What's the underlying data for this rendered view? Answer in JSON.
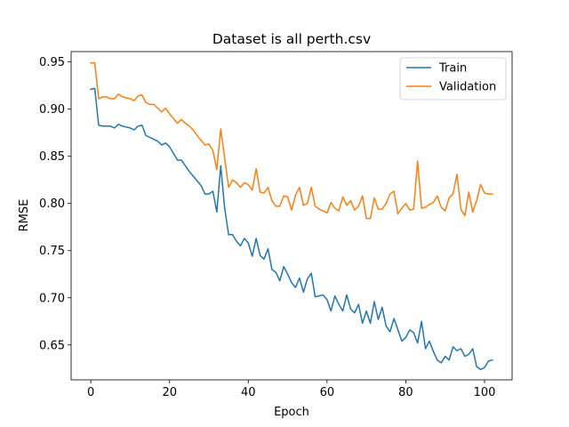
{
  "chart_data": {
    "type": "line",
    "title": "Dataset is all perth.csv",
    "xlabel": "Epoch",
    "ylabel": "RMSE",
    "xlim": [
      -5,
      107
    ],
    "ylim": [
      0.613,
      0.961
    ],
    "xticks": [
      0,
      20,
      40,
      60,
      80,
      100
    ],
    "yticks": [
      0.65,
      0.7,
      0.75,
      0.8,
      0.85,
      0.9,
      0.95
    ],
    "ytick_labels": [
      "0.65",
      "0.70",
      "0.75",
      "0.80",
      "0.85",
      "0.90",
      "0.95"
    ],
    "grid": false,
    "legend_position": "upper right",
    "series": [
      {
        "name": "Train",
        "color": "#1f77b4",
        "x": [
          0,
          1,
          2,
          3,
          4,
          5,
          6,
          7,
          8,
          9,
          10,
          11,
          12,
          13,
          14,
          15,
          16,
          17,
          18,
          19,
          20,
          21,
          22,
          23,
          24,
          25,
          26,
          27,
          28,
          29,
          30,
          31,
          32,
          33,
          34,
          35,
          36,
          37,
          38,
          39,
          40,
          41,
          42,
          43,
          44,
          45,
          46,
          47,
          48,
          49,
          50,
          51,
          52,
          53,
          54,
          55,
          56,
          57,
          58,
          59,
          60,
          61,
          62,
          63,
          64,
          65,
          66,
          67,
          68,
          69,
          70,
          71,
          72,
          73,
          74,
          75,
          76,
          77,
          78,
          79,
          80,
          81,
          82,
          83,
          84,
          85,
          86,
          87,
          88,
          89,
          90,
          91,
          92,
          93,
          94,
          95,
          96,
          97,
          98,
          99,
          100,
          101,
          102
        ],
        "values": [
          0.921,
          0.922,
          0.883,
          0.882,
          0.882,
          0.882,
          0.88,
          0.884,
          0.882,
          0.881,
          0.88,
          0.878,
          0.882,
          0.883,
          0.872,
          0.87,
          0.868,
          0.866,
          0.862,
          0.864,
          0.86,
          0.853,
          0.846,
          0.846,
          0.84,
          0.834,
          0.829,
          0.824,
          0.819,
          0.81,
          0.81,
          0.813,
          0.791,
          0.84,
          0.795,
          0.767,
          0.767,
          0.76,
          0.755,
          0.763,
          0.758,
          0.744,
          0.763,
          0.745,
          0.741,
          0.752,
          0.73,
          0.727,
          0.718,
          0.733,
          0.725,
          0.716,
          0.711,
          0.721,
          0.706,
          0.72,
          0.726,
          0.701,
          0.702,
          0.703,
          0.698,
          0.686,
          0.702,
          0.693,
          0.686,
          0.703,
          0.688,
          0.684,
          0.693,
          0.673,
          0.686,
          0.673,
          0.696,
          0.677,
          0.69,
          0.67,
          0.664,
          0.678,
          0.666,
          0.654,
          0.658,
          0.666,
          0.663,
          0.652,
          0.675,
          0.646,
          0.654,
          0.643,
          0.634,
          0.631,
          0.638,
          0.634,
          0.648,
          0.644,
          0.646,
          0.638,
          0.64,
          0.646,
          0.627,
          0.624,
          0.626,
          0.633,
          0.634
        ]
      },
      {
        "name": "Validation",
        "color": "#ff7f0e",
        "x": [
          0,
          1,
          2,
          3,
          4,
          5,
          6,
          7,
          8,
          9,
          10,
          11,
          12,
          13,
          14,
          15,
          16,
          17,
          18,
          19,
          20,
          21,
          22,
          23,
          24,
          25,
          26,
          27,
          28,
          29,
          30,
          31,
          32,
          33,
          34,
          35,
          36,
          37,
          38,
          39,
          40,
          41,
          42,
          43,
          44,
          45,
          46,
          47,
          48,
          49,
          50,
          51,
          52,
          53,
          54,
          55,
          56,
          57,
          58,
          59,
          60,
          61,
          62,
          63,
          64,
          65,
          66,
          67,
          68,
          69,
          70,
          71,
          72,
          73,
          74,
          75,
          76,
          77,
          78,
          79,
          80,
          81,
          82,
          83,
          84,
          85,
          86,
          87,
          88,
          89,
          90,
          91,
          92,
          93,
          94,
          95,
          96,
          97,
          98,
          99,
          100,
          101,
          102
        ],
        "values": [
          0.949,
          0.949,
          0.911,
          0.913,
          0.913,
          0.911,
          0.911,
          0.916,
          0.913,
          0.912,
          0.911,
          0.909,
          0.914,
          0.915,
          0.907,
          0.905,
          0.905,
          0.901,
          0.897,
          0.901,
          0.895,
          0.89,
          0.885,
          0.889,
          0.885,
          0.882,
          0.878,
          0.872,
          0.867,
          0.862,
          0.863,
          0.856,
          0.836,
          0.879,
          0.848,
          0.817,
          0.825,
          0.822,
          0.817,
          0.822,
          0.82,
          0.814,
          0.837,
          0.812,
          0.811,
          0.817,
          0.803,
          0.797,
          0.797,
          0.808,
          0.807,
          0.793,
          0.809,
          0.817,
          0.798,
          0.8,
          0.817,
          0.797,
          0.794,
          0.792,
          0.79,
          0.801,
          0.795,
          0.792,
          0.807,
          0.798,
          0.803,
          0.793,
          0.797,
          0.808,
          0.784,
          0.784,
          0.806,
          0.794,
          0.794,
          0.8,
          0.81,
          0.813,
          0.789,
          0.795,
          0.8,
          0.793,
          0.794,
          0.845,
          0.795,
          0.796,
          0.799,
          0.801,
          0.808,
          0.796,
          0.792,
          0.806,
          0.81,
          0.831,
          0.794,
          0.787,
          0.812,
          0.791,
          0.803,
          0.82,
          0.811,
          0.81,
          0.81
        ]
      }
    ]
  }
}
